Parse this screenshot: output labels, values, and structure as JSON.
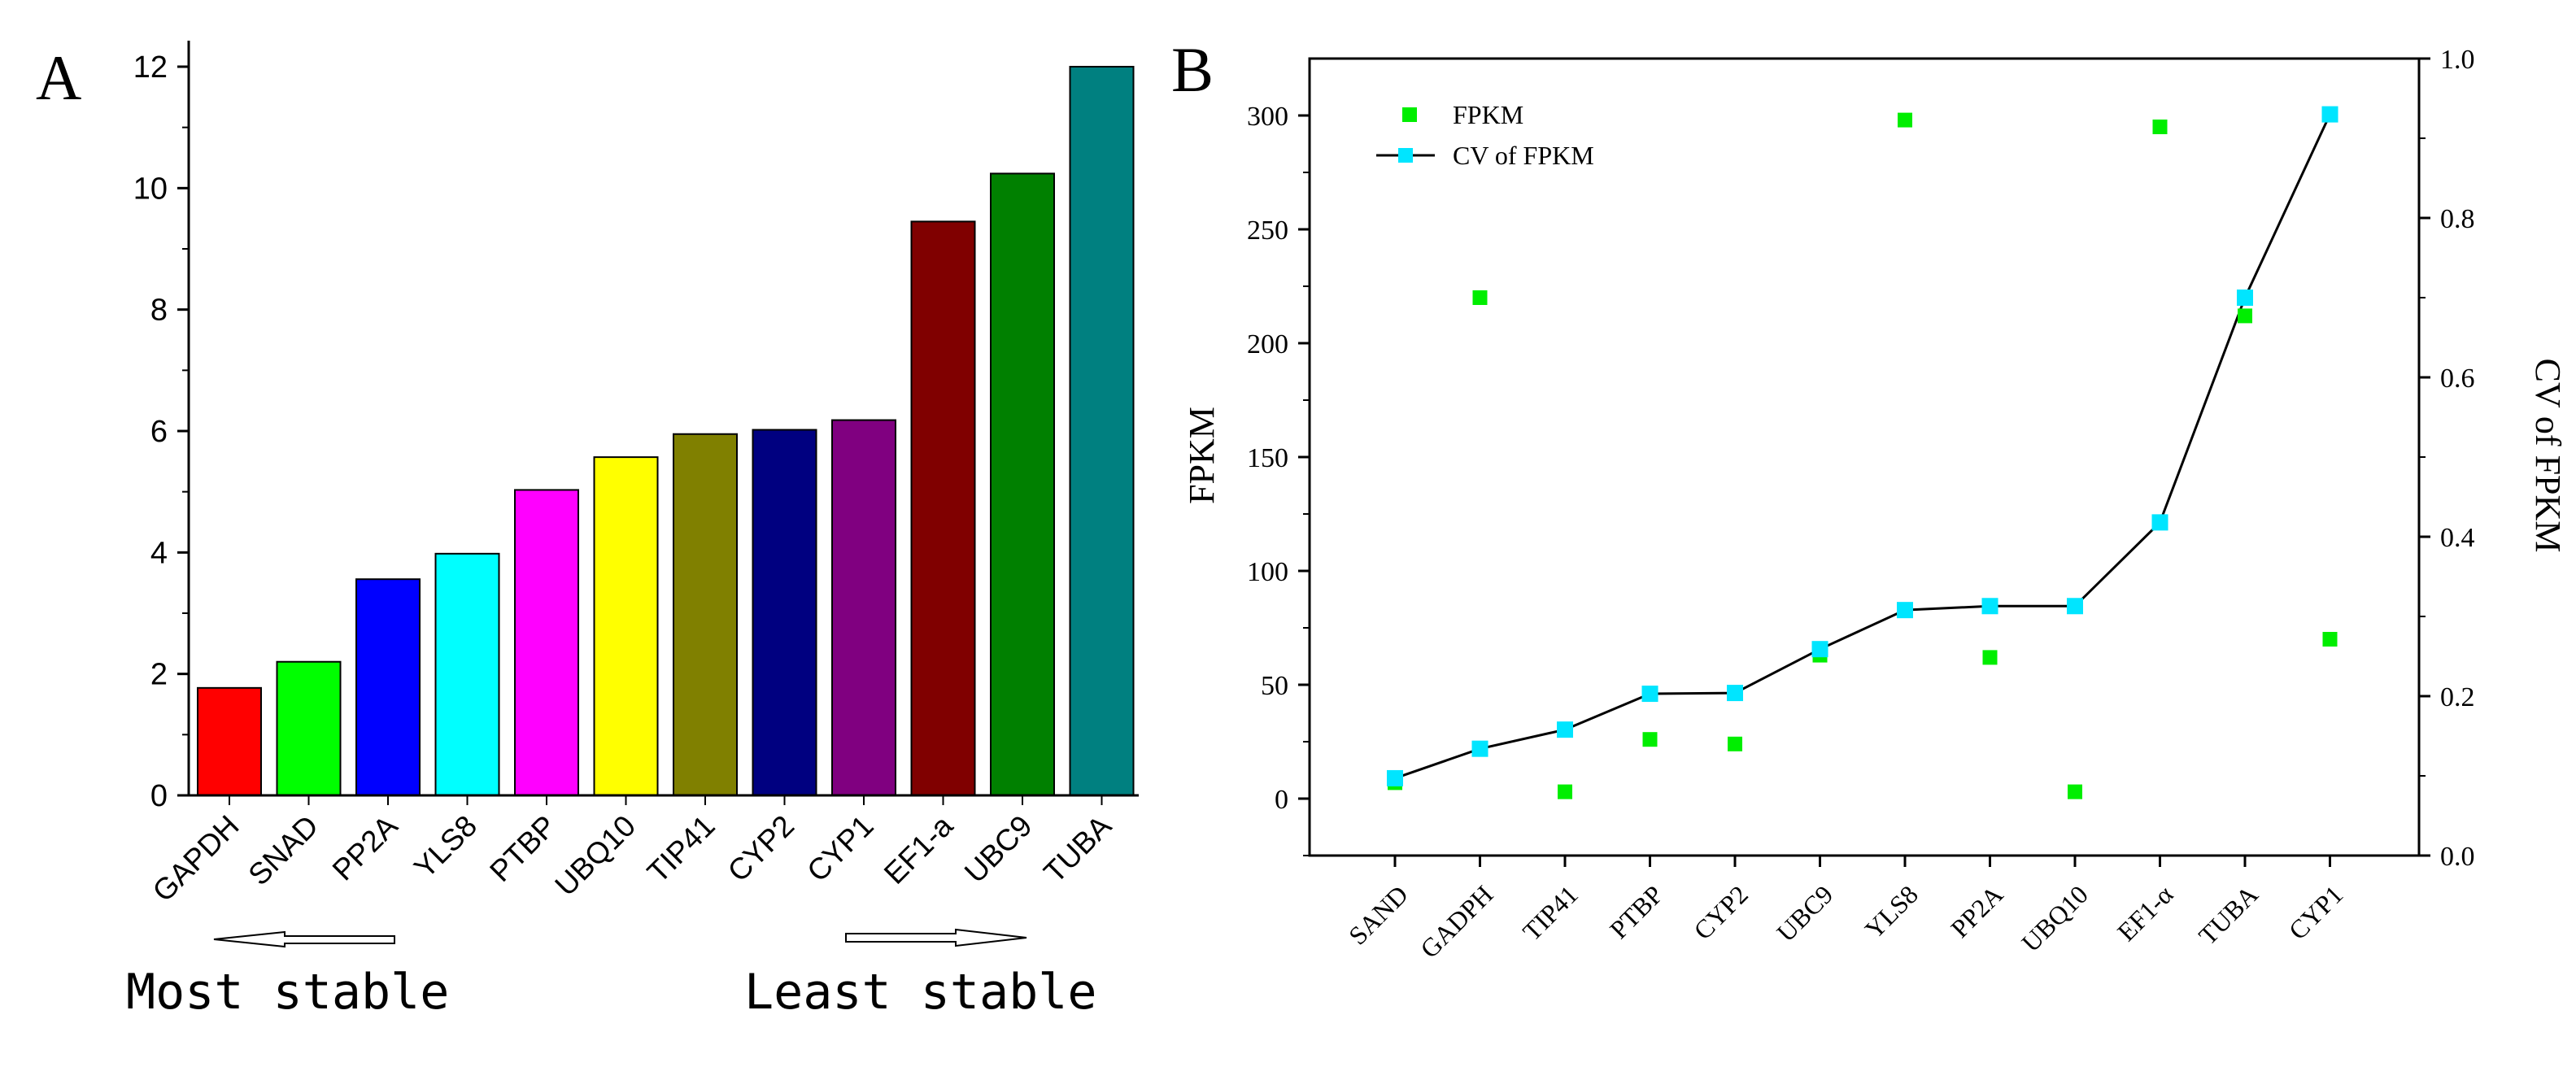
{
  "chart_data": [
    {
      "panel": "A",
      "type": "bar",
      "title": "",
      "xlabel": "",
      "ylabel": "",
      "ylim": [
        0,
        12.4
      ],
      "yticks": [
        "0",
        "2",
        "4",
        "6",
        "8",
        "10",
        "12"
      ],
      "categories": [
        "GAPDH",
        "SNAD",
        "PP2A",
        "YLS8",
        "PTBP",
        "UBQ10",
        "TIP41",
        "CYP2",
        "CYP1",
        "EF1-a",
        "UBC9",
        "TUBA"
      ],
      "values": [
        1.77,
        2.2,
        3.56,
        3.98,
        5.03,
        5.57,
        5.95,
        6.02,
        6.18,
        9.45,
        10.24,
        12.0
      ],
      "colors": [
        "#ff0000",
        "#00ff00",
        "#0000ff",
        "#00ffff",
        "#ff00ff",
        "#ffff00",
        "#808000",
        "#000080",
        "#800080",
        "#800000",
        "#008000",
        "#008080"
      ],
      "annotations": {
        "left_arrow": "Most stable",
        "right_arrow": "Least stable"
      }
    },
    {
      "panel": "B",
      "type": "scatter",
      "title": "",
      "categories": [
        "SAND",
        "GADPH",
        "TIP41",
        "PTBP",
        "CYP2",
        "UBC9",
        "YLS8",
        "PP2A",
        "UBQ10",
        "EF1-α",
        "TUBA",
        "CYP1"
      ],
      "ylabel": "FPKM",
      "y2label": "CV of FPKM",
      "ylim": [
        -25,
        325
      ],
      "y2lim": [
        0,
        1.0
      ],
      "yticks": [
        "0",
        "50",
        "100",
        "150",
        "200",
        "250",
        "300"
      ],
      "y2ticks": [
        "0.0",
        "0.2",
        "0.4",
        "0.6",
        "0.8",
        "1.0"
      ],
      "series": [
        {
          "name": "FPKM",
          "axis": "left",
          "style": "markers",
          "color": "#00ee00",
          "values": [
            7,
            220,
            3,
            26,
            24,
            63,
            298,
            62,
            3,
            295,
            212,
            70
          ]
        },
        {
          "name": "CV of FPKM",
          "axis": "right",
          "style": "line+markers",
          "color": "#00e5ff",
          "values": [
            0.097,
            0.134,
            0.158,
            0.203,
            0.204,
            0.259,
            0.308,
            0.313,
            0.313,
            0.418,
            0.7,
            0.93
          ]
        }
      ]
    }
  ],
  "panel_labels": {
    "a": "A",
    "b": "B"
  },
  "colors": {
    "line": "#000000",
    "axis": "#000000",
    "arrow_fill": "#ffffff"
  }
}
